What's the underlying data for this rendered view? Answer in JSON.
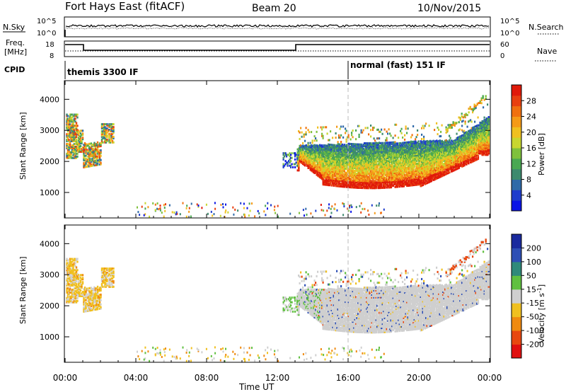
{
  "header": {
    "station": "Fort Hays East (fitACF)",
    "beam": "Beam 20",
    "date": "10/Nov/2015"
  },
  "top_panels": {
    "nsky": {
      "label": "N.Sky",
      "left_ticks": [
        "10^5",
        "10^0"
      ],
      "right_ticks": [
        "10^5",
        "10^0"
      ],
      "right_label": "N.Search"
    },
    "freq": {
      "label_line1": "Freq.",
      "label_line2": "[MHz]",
      "left_ticks": [
        "18",
        "8"
      ],
      "right_ticks": [
        "60",
        "0"
      ],
      "right_label": "Nave"
    },
    "cpid": {
      "label": "CPID",
      "segments": [
        {
          "label": "themis 3300 IF",
          "start_hour": 0
        },
        {
          "label": "normal (fast) 151 IF",
          "start_hour": 16
        }
      ]
    }
  },
  "x_axis": {
    "label": "Time UT",
    "ticks": [
      "00:00",
      "04:00",
      "08:00",
      "12:00",
      "16:00",
      "20:00",
      "00:00"
    ]
  },
  "chart_data": [
    {
      "type": "heatmap",
      "name": "power",
      "ylabel": "Slant Range [km]",
      "y_ticks": [
        1000,
        2000,
        3000,
        4000
      ],
      "ylim": [
        180,
        4600
      ],
      "xlim_hours": [
        0,
        24
      ],
      "colorbar": {
        "label": "Power [dB]",
        "ticks": [
          4,
          8,
          12,
          16,
          20,
          24,
          28
        ],
        "range": [
          0,
          32
        ],
        "colors": [
          "#0a14e6",
          "#1e3ccc",
          "#2f6aa8",
          "#3d8a6e",
          "#4aa852",
          "#7fc13c",
          "#c8d630",
          "#f0c020",
          "#f59a18",
          "#f07010",
          "#e84010",
          "#e01a0a"
        ]
      }
    },
    {
      "type": "heatmap",
      "name": "velocity",
      "ylabel": "Slant Range [km]",
      "y_ticks": [
        1000,
        2000,
        3000,
        4000
      ],
      "ylim": [
        180,
        4600
      ],
      "xlim_hours": [
        0,
        24
      ],
      "colorbar": {
        "label": "Velocity [m s-1]",
        "ticks": [
          200,
          100,
          50,
          15,
          -15,
          -50,
          -100,
          -200
        ],
        "colors": [
          "#1a2a9e",
          "#2e4fb5",
          "#2f8a7a",
          "#60c040",
          "#cfcfcf",
          "#f0c020",
          "#f08a10",
          "#e84810",
          "#e01010"
        ]
      }
    }
  ]
}
